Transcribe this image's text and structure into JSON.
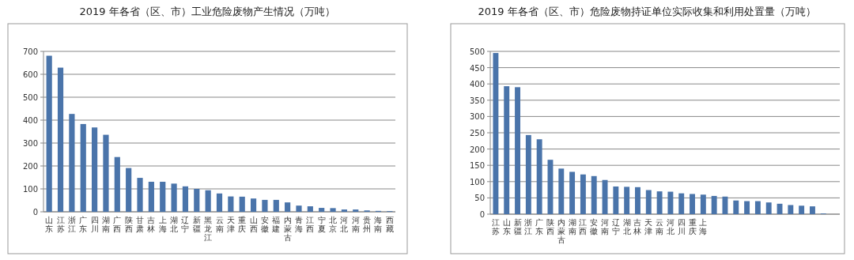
{
  "chart_data": [
    {
      "type": "bar",
      "title": "2019 年各省（区、市）工业危险废物产生情况（万吨）",
      "categories": [
        "山东",
        "江苏",
        "浙江",
        "广东",
        "四川",
        "湖南",
        "广西",
        "陕西",
        "甘肃",
        "吉林",
        "上海",
        "湖北",
        "辽宁",
        "新疆",
        "黑龙江",
        "云南",
        "天津",
        "重庆",
        "山西",
        "安徽",
        "福建",
        "内蒙古",
        "青海",
        "江西",
        "宁夏",
        "北京",
        "河北",
        "河南",
        "贵州",
        "海南",
        "西藏"
      ],
      "values": [
        681,
        629,
        427,
        383,
        368,
        336,
        239,
        191,
        148,
        131,
        131,
        123,
        111,
        100,
        94,
        80,
        67,
        66,
        58,
        52,
        52,
        41,
        27,
        24,
        17,
        16,
        10,
        10,
        6,
        4,
        3
      ],
      "color": "#4a74aa",
      "ylim": [
        0,
        700
      ],
      "yticks": [
        0,
        100,
        200,
        300,
        400,
        500,
        600,
        700
      ],
      "grid": "y"
    },
    {
      "type": "bar",
      "title": "2019 年各省（区、市）危险废物持证单位实际收集和利用处置量（万吨）",
      "categories": [
        "江苏",
        "山东",
        "新疆",
        "浙江",
        "广东",
        "陕西",
        "内蒙古",
        "湖南",
        "江西",
        "安徽",
        "河南",
        "辽宁",
        "湖北",
        "吉林",
        "天津",
        "云南",
        "河北",
        "四川",
        "重庆",
        "上海",
        null,
        null,
        null,
        null,
        null,
        null,
        null,
        null,
        null,
        null,
        null,
        null
      ],
      "values": [
        495,
        393,
        390,
        243,
        230,
        167,
        140,
        130,
        122,
        117,
        105,
        85,
        84,
        83,
        74,
        70,
        69,
        64,
        62,
        60,
        56,
        54,
        42,
        40,
        40,
        36,
        32,
        28,
        26,
        24,
        2,
        null
      ],
      "color": "#4a74aa",
      "ylim": [
        0,
        500
      ],
      "yticks": [
        0,
        50,
        100,
        150,
        200,
        250,
        300,
        350,
        400,
        450,
        500
      ],
      "grid": "y"
    }
  ]
}
